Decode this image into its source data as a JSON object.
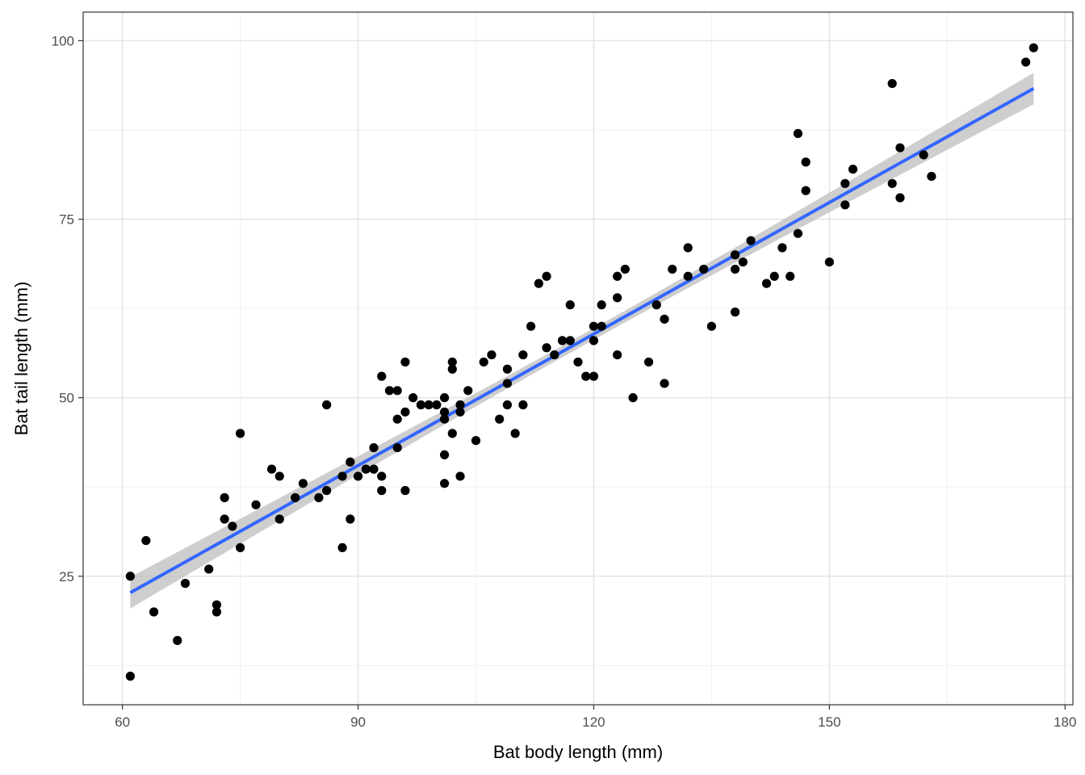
{
  "chart_data": {
    "type": "scatter",
    "title": "",
    "xlabel": "Bat body length (mm)",
    "ylabel": "Bat tail length (mm)",
    "xlim": [
      55,
      181
    ],
    "ylim": [
      7,
      104
    ],
    "x_ticks": [
      60,
      90,
      120,
      150,
      180
    ],
    "y_ticks": [
      25,
      50,
      75,
      100
    ],
    "grid": true,
    "legend": "none",
    "point_color": "#000000",
    "fit": {
      "method": "linear regression with confidence band",
      "color": "#3366FF",
      "band_color": "#BEBEBE",
      "x_range": [
        61,
        176
      ],
      "y_at_start": 22.7,
      "y_at_end": 93.3,
      "band_halfwidth_at_ends": 2.2,
      "band_halfwidth_at_center": 0.8
    },
    "points": [
      {
        "x": 61,
        "y": 25
      },
      {
        "x": 61,
        "y": 11
      },
      {
        "x": 63,
        "y": 30
      },
      {
        "x": 64,
        "y": 20
      },
      {
        "x": 67,
        "y": 16
      },
      {
        "x": 68,
        "y": 24
      },
      {
        "x": 71,
        "y": 26
      },
      {
        "x": 72,
        "y": 21
      },
      {
        "x": 72,
        "y": 20
      },
      {
        "x": 73,
        "y": 36
      },
      {
        "x": 73,
        "y": 33
      },
      {
        "x": 74,
        "y": 32
      },
      {
        "x": 75,
        "y": 45
      },
      {
        "x": 75,
        "y": 29
      },
      {
        "x": 77,
        "y": 35
      },
      {
        "x": 79,
        "y": 40
      },
      {
        "x": 80,
        "y": 39
      },
      {
        "x": 80,
        "y": 33
      },
      {
        "x": 82,
        "y": 36
      },
      {
        "x": 83,
        "y": 38
      },
      {
        "x": 85,
        "y": 36
      },
      {
        "x": 86,
        "y": 49
      },
      {
        "x": 86,
        "y": 37
      },
      {
        "x": 88,
        "y": 39
      },
      {
        "x": 88,
        "y": 29
      },
      {
        "x": 89,
        "y": 41
      },
      {
        "x": 89,
        "y": 33
      },
      {
        "x": 90,
        "y": 39
      },
      {
        "x": 91,
        "y": 40
      },
      {
        "x": 92,
        "y": 43
      },
      {
        "x": 92,
        "y": 40
      },
      {
        "x": 93,
        "y": 53
      },
      {
        "x": 93,
        "y": 39
      },
      {
        "x": 93,
        "y": 37
      },
      {
        "x": 94,
        "y": 51
      },
      {
        "x": 95,
        "y": 51
      },
      {
        "x": 95,
        "y": 47
      },
      {
        "x": 95,
        "y": 43
      },
      {
        "x": 96,
        "y": 55
      },
      {
        "x": 96,
        "y": 48
      },
      {
        "x": 96,
        "y": 37
      },
      {
        "x": 97,
        "y": 50
      },
      {
        "x": 98,
        "y": 49
      },
      {
        "x": 99,
        "y": 49
      },
      {
        "x": 100,
        "y": 49
      },
      {
        "x": 101,
        "y": 50
      },
      {
        "x": 101,
        "y": 48
      },
      {
        "x": 101,
        "y": 47
      },
      {
        "x": 101,
        "y": 42
      },
      {
        "x": 101,
        "y": 38
      },
      {
        "x": 102,
        "y": 55
      },
      {
        "x": 102,
        "y": 54
      },
      {
        "x": 102,
        "y": 45
      },
      {
        "x": 103,
        "y": 49
      },
      {
        "x": 103,
        "y": 48
      },
      {
        "x": 103,
        "y": 39
      },
      {
        "x": 104,
        "y": 51
      },
      {
        "x": 105,
        "y": 44
      },
      {
        "x": 106,
        "y": 55
      },
      {
        "x": 107,
        "y": 56
      },
      {
        "x": 108,
        "y": 47
      },
      {
        "x": 109,
        "y": 54
      },
      {
        "x": 109,
        "y": 52
      },
      {
        "x": 109,
        "y": 49
      },
      {
        "x": 110,
        "y": 45
      },
      {
        "x": 111,
        "y": 56
      },
      {
        "x": 111,
        "y": 49
      },
      {
        "x": 112,
        "y": 60
      },
      {
        "x": 113,
        "y": 66
      },
      {
        "x": 114,
        "y": 67
      },
      {
        "x": 114,
        "y": 57
      },
      {
        "x": 115,
        "y": 56
      },
      {
        "x": 116,
        "y": 58
      },
      {
        "x": 117,
        "y": 63
      },
      {
        "x": 117,
        "y": 58
      },
      {
        "x": 118,
        "y": 55
      },
      {
        "x": 119,
        "y": 53
      },
      {
        "x": 120,
        "y": 60
      },
      {
        "x": 120,
        "y": 58
      },
      {
        "x": 120,
        "y": 53
      },
      {
        "x": 121,
        "y": 63
      },
      {
        "x": 121,
        "y": 60
      },
      {
        "x": 123,
        "y": 67
      },
      {
        "x": 123,
        "y": 64
      },
      {
        "x": 123,
        "y": 56
      },
      {
        "x": 124,
        "y": 68
      },
      {
        "x": 125,
        "y": 50
      },
      {
        "x": 127,
        "y": 55
      },
      {
        "x": 128,
        "y": 63
      },
      {
        "x": 129,
        "y": 61
      },
      {
        "x": 129,
        "y": 52
      },
      {
        "x": 130,
        "y": 68
      },
      {
        "x": 132,
        "y": 71
      },
      {
        "x": 132,
        "y": 67
      },
      {
        "x": 134,
        "y": 68
      },
      {
        "x": 135,
        "y": 60
      },
      {
        "x": 138,
        "y": 70
      },
      {
        "x": 138,
        "y": 68
      },
      {
        "x": 138,
        "y": 62
      },
      {
        "x": 139,
        "y": 69
      },
      {
        "x": 140,
        "y": 72
      },
      {
        "x": 142,
        "y": 66
      },
      {
        "x": 143,
        "y": 67
      },
      {
        "x": 144,
        "y": 71
      },
      {
        "x": 145,
        "y": 67
      },
      {
        "x": 146,
        "y": 87
      },
      {
        "x": 146,
        "y": 73
      },
      {
        "x": 147,
        "y": 83
      },
      {
        "x": 147,
        "y": 79
      },
      {
        "x": 150,
        "y": 69
      },
      {
        "x": 152,
        "y": 80
      },
      {
        "x": 152,
        "y": 77
      },
      {
        "x": 153,
        "y": 82
      },
      {
        "x": 158,
        "y": 94
      },
      {
        "x": 158,
        "y": 80
      },
      {
        "x": 159,
        "y": 85
      },
      {
        "x": 159,
        "y": 78
      },
      {
        "x": 162,
        "y": 84
      },
      {
        "x": 163,
        "y": 81
      },
      {
        "x": 175,
        "y": 97
      },
      {
        "x": 176,
        "y": 99
      }
    ]
  }
}
